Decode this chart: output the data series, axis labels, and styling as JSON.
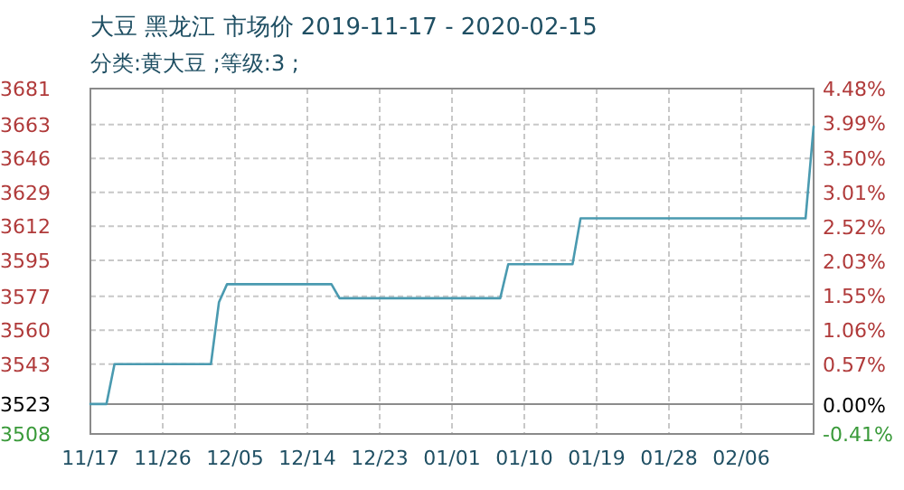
{
  "chart_data": {
    "type": "line",
    "title": "大豆 黑龙江 市场价 2019-11-17 - 2020-02-15",
    "subtitle": "分类:黄大豆 ;等级:3 ;",
    "x": [
      "2019-11-17",
      "2019-11-19",
      "2019-11-20",
      "2019-12-02",
      "2019-12-03",
      "2019-12-04",
      "2019-12-17",
      "2019-12-18",
      "2020-01-07",
      "2020-01-08",
      "2020-01-16",
      "2020-01-17",
      "2020-02-14",
      "2020-02-15"
    ],
    "series": [
      {
        "color": "#4a9ab0",
        "values": [
          3523,
          3523,
          3543,
          3543,
          3574,
          3583,
          3583,
          3576,
          3576,
          3593,
          3593,
          3616,
          3616,
          3662
        ]
      }
    ],
    "xlim": [
      "2019-11-17",
      "2020-02-15"
    ],
    "xticks": [
      {
        "value": "2019-11-17",
        "label": "11/17"
      },
      {
        "value": "2019-11-26",
        "label": "11/26"
      },
      {
        "value": "2019-12-05",
        "label": "12/05"
      },
      {
        "value": "2019-12-14",
        "label": "12/14"
      },
      {
        "value": "2019-12-23",
        "label": "12/23"
      },
      {
        "value": "2020-01-01",
        "label": "01/01"
      },
      {
        "value": "2020-01-10",
        "label": "01/10"
      },
      {
        "value": "2020-01-19",
        "label": "01/19"
      },
      {
        "value": "2020-01-28",
        "label": "01/28"
      },
      {
        "value": "2020-02-06",
        "label": "02/06"
      }
    ],
    "ylim": [
      3508,
      3681
    ],
    "yticks": [
      3508,
      3523,
      3543,
      3560,
      3577,
      3595,
      3612,
      3629,
      3646,
      3663,
      3681
    ],
    "y2lim": [
      -0.41,
      4.48
    ],
    "y2ticks": [
      {
        "value": -0.41,
        "label": "-0.41%"
      },
      {
        "value": 0,
        "label": "0.00%"
      },
      {
        "value": 0.57,
        "label": "0.57%"
      },
      {
        "value": 1.06,
        "label": "1.06%"
      },
      {
        "value": 1.55,
        "label": "1.55%"
      },
      {
        "value": 2.03,
        "label": "2.03%"
      },
      {
        "value": 2.52,
        "label": "2.52%"
      },
      {
        "value": 3.01,
        "label": "3.01%"
      },
      {
        "value": 3.5,
        "label": "3.50%"
      },
      {
        "value": 3.99,
        "label": "3.99%"
      },
      {
        "value": 4.48,
        "label": "4.48%"
      }
    ],
    "ref_lines": [
      {
        "axis": "y",
        "value": 3523,
        "color": "#8c8c8c"
      }
    ],
    "grid": true,
    "marker": "none",
    "line_style": "solid"
  }
}
